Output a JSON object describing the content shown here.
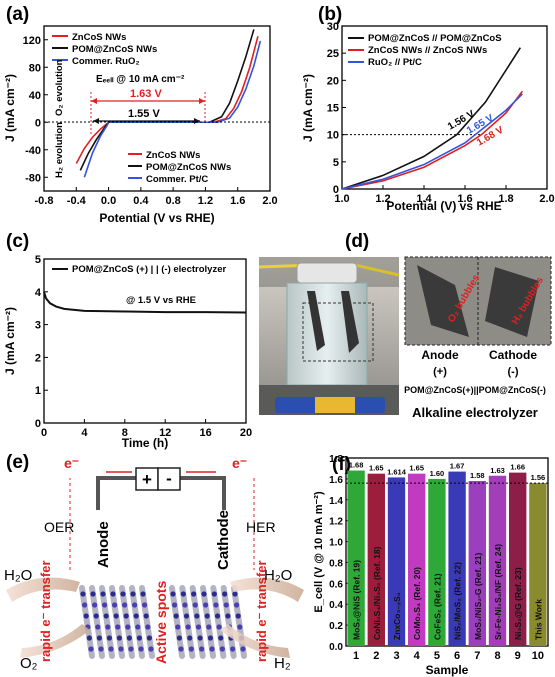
{
  "panels": {
    "a": {
      "label": "(a)",
      "chart_data": {
        "type": "line",
        "xlabel": "Potential (V vs RHE)",
        "ylabel": "J (mA cm⁻²)",
        "xlim": [
          -0.8,
          2.0
        ],
        "ylim": [
          -100,
          140
        ],
        "xticks": [
          "-0.8",
          "-0.4",
          "0.0",
          "0.4",
          "0.8",
          "1.2",
          "1.6",
          "2.0"
        ],
        "yticks": [
          "-80",
          "-40",
          "0",
          "40",
          "80",
          "120"
        ],
        "legend_top": [
          "ZnCoS NWs",
          "POM@ZnCoS NWs",
          "Commer. RuO₂"
        ],
        "legend_bottom": [
          "ZnCoS NWs",
          "POM@ZnCoS NWs",
          "Commer. Pt/C"
        ],
        "series_colors": [
          "#e02020",
          "#111111",
          "#3355dd"
        ],
        "annotations": {
          "o2": "O₂ evolution",
          "h2": "H₂ evolution",
          "ecell": "Eₑₑₗₗ @ 10 mA cm⁻²",
          "v1": "1.63 V",
          "v2": "1.55 V"
        },
        "series": [
          {
            "name": "ZnCoS NWs",
            "x": [
              -0.4,
              -0.3,
              -0.2,
              -0.1,
              0.0,
              1.3,
              1.45,
              1.55,
              1.65,
              1.75,
              1.85
            ],
            "y": [
              -60,
              -38,
              -22,
              -10,
              0,
              0,
              5,
              20,
              45,
              80,
              125
            ]
          },
          {
            "name": "POM@ZnCoS NWs",
            "x": [
              -0.35,
              -0.25,
              -0.15,
              -0.05,
              0.0,
              1.25,
              1.4,
              1.5,
              1.6,
              1.7,
              1.8
            ],
            "y": [
              -70,
              -45,
              -25,
              -8,
              0,
              0,
              8,
              28,
              60,
              95,
              135
            ]
          },
          {
            "name": "Commer. RuO₂ / Pt/C",
            "x": [
              -0.3,
              -0.2,
              -0.1,
              -0.02,
              0.0,
              1.35,
              1.5,
              1.6,
              1.7,
              1.8,
              1.88
            ],
            "y": [
              -80,
              -45,
              -20,
              -5,
              0,
              0,
              6,
              22,
              48,
              82,
              118
            ]
          }
        ]
      }
    },
    "b": {
      "label": "(b)",
      "chart_data": {
        "type": "line",
        "xlabel": "Potential (V) vs RHE",
        "ylabel": "J (mA cm⁻²)",
        "xlim": [
          1.0,
          2.0
        ],
        "ylim": [
          0,
          30
        ],
        "xticks": [
          "1.0",
          "1.2",
          "1.4",
          "1.6",
          "1.8",
          "2.0"
        ],
        "yticks": [
          "0",
          "5",
          "10",
          "15",
          "20",
          "25",
          "30"
        ],
        "legend": [
          "POM@ZnCoS // POM@ZnCoS",
          "ZnCoS NWs // ZnCoS NWs",
          "RuO₂ // Pt/C"
        ],
        "series_colors": [
          "#111111",
          "#e02020",
          "#3355dd"
        ],
        "annotations": [
          "1.56 V",
          "1.65 V",
          "1.68 V"
        ],
        "series": [
          {
            "name": "POM@ZnCoS // POM@ZnCoS",
            "x": [
              1.0,
              1.2,
              1.4,
              1.56,
              1.7,
              1.87
            ],
            "y": [
              0,
              2.5,
              6,
              10,
              16,
              26
            ]
          },
          {
            "name": "ZnCoS NWs // ZnCoS NWs",
            "x": [
              1.0,
              1.2,
              1.4,
              1.6,
              1.68,
              1.8,
              1.88
            ],
            "y": [
              0,
              1.5,
              4,
              8,
              10,
              14,
              18
            ]
          },
          {
            "name": "RuO₂ // Pt/C",
            "x": [
              1.0,
              1.2,
              1.4,
              1.6,
              1.65,
              1.8,
              1.88
            ],
            "y": [
              0,
              1.8,
              4.5,
              8.5,
              10,
              14.5,
              17.5
            ]
          }
        ]
      }
    },
    "c": {
      "label": "(c)",
      "chart_data": {
        "type": "line",
        "xlabel": "Time (h)",
        "ylabel": "J (mA cm⁻²)",
        "xlim": [
          0,
          20
        ],
        "ylim": [
          0,
          5
        ],
        "xticks": [
          "0",
          "4",
          "8",
          "12",
          "16",
          "20"
        ],
        "yticks": [
          "0",
          "1",
          "2",
          "3",
          "4",
          "5"
        ],
        "legend": [
          "POM@ZnCoS (+) | | (-) electrolyzer"
        ],
        "annotation": "@ 1.5 V vs RHE",
        "series": [
          {
            "name": "POM@ZnCoS (+) | | (-) electrolyzer",
            "x": [
              0,
              0.2,
              0.6,
              1.2,
              2,
              4,
              8,
              12,
              16,
              20
            ],
            "y": [
              4.0,
              3.8,
              3.65,
              3.55,
              3.48,
              3.42,
              3.4,
              3.38,
              3.38,
              3.37
            ]
          }
        ]
      }
    },
    "d": {
      "label": "(d)",
      "anode": "Anode",
      "anode_sign": "(+)",
      "cathode": "Cathode",
      "cathode_sign": "(-)",
      "o2_bubbles": "O₂ bubbles",
      "h2_bubbles": "H₂ bubbles",
      "caption": "POM@ZnCoS(+)||POM@ZnCoS(-)",
      "title": "Alkaline electrolyzer"
    },
    "e": {
      "label": "(e)",
      "eminus_left": "e⁻",
      "eminus_right": "e⁻",
      "plus": "+",
      "minus": "-",
      "oer": "OER",
      "her": "HER",
      "anode": "Anode",
      "cathode": "Cathode",
      "h2o_left": "H₂O",
      "h2o_right": "H₂O",
      "o2": "O₂",
      "h2": "H₂",
      "rapid_left": "rapid e⁻ transfer",
      "active": "Active spots",
      "rapid_right": "rapid e⁻ transfer"
    },
    "f": {
      "label": "(f)",
      "chart_data": {
        "type": "bar",
        "xlabel": "Sample",
        "ylabel": "E_cell (V @ 10 mA m⁻²)",
        "ylim": [
          0.0,
          1.8
        ],
        "yticks": [
          "0.0",
          "0.2",
          "0.4",
          "0.6",
          "0.8",
          "1.0",
          "1.2",
          "1.4",
          "1.6",
          "1.8"
        ],
        "categories": [
          "1",
          "2",
          "3",
          "4",
          "5",
          "6",
          "7",
          "8",
          "9",
          "10"
        ],
        "values": [
          1.68,
          1.65,
          1.614,
          1.65,
          1.6,
          1.67,
          1.58,
          1.63,
          1.66,
          1.56
        ],
        "value_labels": [
          "1.68",
          "1.65",
          "1.614",
          "1.65",
          "1.60",
          "1.67",
          "1.58",
          "1.63",
          "1.66",
          "1.56"
        ],
        "bar_texts": [
          "MoS₂@NiS (Ref. 19)",
          "CoNi₂S₄/Ni₃S₂ (Ref. 18)",
          "ZnxCo₃₋ₓS₄",
          "CoMo₂S₄ (Ref. 20)",
          "CoFeS₂ (Ref. 21)",
          "NiS₂/MoS₂ (Ref. 22)",
          "MoS₂/NiS₂-G (Ref. 21)",
          "Sr-Fe-Ni₃S₂/NF (Ref. 24)",
          "Ni₃S₂@G (Ref. 23)",
          "This Work"
        ],
        "colors": [
          "#2ea836",
          "#9c1e3c",
          "#3a3ab8",
          "#c03bc0",
          "#2ea836",
          "#3a3ab8",
          "#9b3fbf",
          "#a23fb8",
          "#8c1e48",
          "#8a8a2e"
        ],
        "ref_line": 1.56
      }
    }
  }
}
